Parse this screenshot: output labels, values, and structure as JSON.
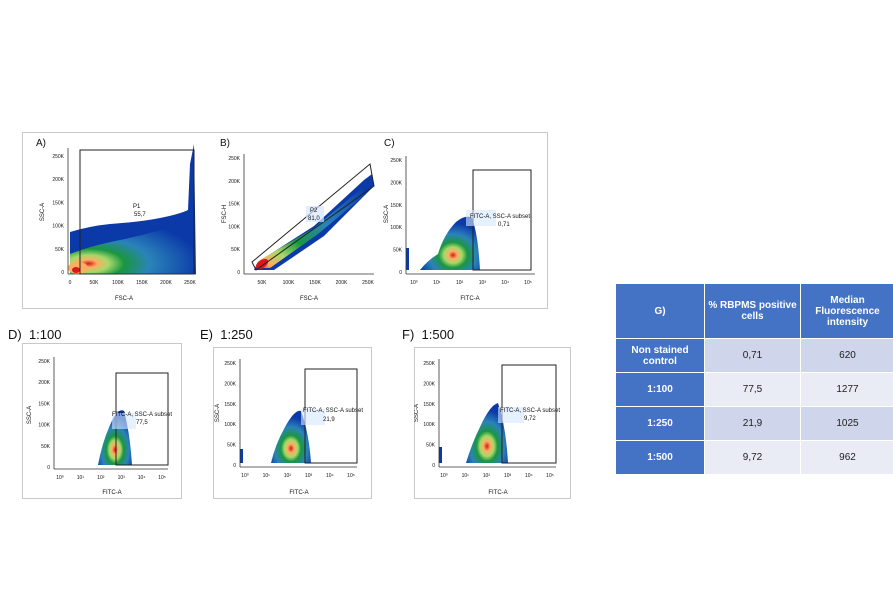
{
  "chart_data": [
    {
      "type": "scatter",
      "panel": "A)",
      "xlabel": "FSC-A",
      "ylabel": "SSC-A",
      "xlim": [
        0,
        262144
      ],
      "ylim": [
        0,
        262144
      ],
      "x_ticks": [
        "0",
        "50K",
        "100K",
        "150K",
        "200K",
        "250K"
      ],
      "y_ticks": [
        "0",
        "50K",
        "100K",
        "150K",
        "200K",
        "250K"
      ],
      "gate": {
        "name": "P1",
        "value": "55,7"
      }
    },
    {
      "type": "scatter",
      "panel": "B)",
      "xlabel": "FSC-A",
      "ylabel": "FSC-H",
      "xlim": [
        0,
        262144
      ],
      "ylim": [
        0,
        262144
      ],
      "x_ticks": [
        "50K",
        "100K",
        "150K",
        "200K",
        "250K"
      ],
      "y_ticks": [
        "0",
        "50K",
        "100K",
        "150K",
        "200K",
        "250K"
      ],
      "gate": {
        "name": "P2",
        "value": "81,0"
      }
    },
    {
      "type": "scatter",
      "panel": "C)",
      "xlabel": "FITC-A",
      "ylabel": "SSC-A",
      "x_scale": "log",
      "ylim": [
        0,
        262144
      ],
      "x_ticks": [
        "10⁰",
        "10¹",
        "10²",
        "10³",
        "10⁴",
        "10⁵"
      ],
      "y_ticks": [
        "0",
        "50K",
        "100K",
        "150K",
        "200K",
        "250K"
      ],
      "gate": {
        "name": "FITC-A, SSC-A subset",
        "value": "0,71"
      }
    },
    {
      "type": "scatter",
      "panel": "D)",
      "title": "1:100",
      "xlabel": "FITC-A",
      "ylabel": "SSC-A",
      "x_scale": "log",
      "ylim": [
        0,
        262144
      ],
      "x_ticks": [
        "10⁰",
        "10¹",
        "10²",
        "10³",
        "10⁴",
        "10⁵"
      ],
      "y_ticks": [
        "0",
        "50K",
        "100K",
        "150K",
        "200K",
        "250K"
      ],
      "gate": {
        "name": "FITC-A, SSC-A subset",
        "value": "77,5"
      }
    },
    {
      "type": "scatter",
      "panel": "E)",
      "title": "1:250",
      "xlabel": "FITC-A",
      "ylabel": "SSC-A",
      "x_scale": "log",
      "ylim": [
        0,
        262144
      ],
      "x_ticks": [
        "10⁰",
        "10¹",
        "10²",
        "10³",
        "10⁴",
        "10⁵"
      ],
      "y_ticks": [
        "0",
        "50K",
        "100K",
        "150K",
        "200K",
        "250K"
      ],
      "gate": {
        "name": "FITC-A, SSC-A subset",
        "value": "21,9"
      }
    },
    {
      "type": "scatter",
      "panel": "F)",
      "title": "1:500",
      "xlabel": "FITC-A",
      "ylabel": "SSC-A",
      "x_scale": "log",
      "ylim": [
        0,
        262144
      ],
      "x_ticks": [
        "10⁰",
        "10¹",
        "10²",
        "10³",
        "10⁴",
        "10⁵"
      ],
      "y_ticks": [
        "0",
        "50K",
        "100K",
        "150K",
        "200K",
        "250K"
      ],
      "gate": {
        "name": "FITC-A, SSC-A subset",
        "value": "9,72"
      }
    },
    {
      "type": "table",
      "panel": "G)",
      "columns": [
        "G)",
        "% RBPMS positive cells",
        "Median Fluorescence intensity"
      ],
      "rows": [
        [
          "Non stained control",
          "0,71",
          "620"
        ],
        [
          "1:100",
          "77,5",
          "1277"
        ],
        [
          "1:250",
          "21,9",
          "1025"
        ],
        [
          "1:500",
          "9,72",
          "962"
        ]
      ]
    }
  ],
  "colors": {
    "table_header": "#4472c4",
    "table_band_dark": "#cfd5ea",
    "table_band_light": "#e9ebf5"
  }
}
